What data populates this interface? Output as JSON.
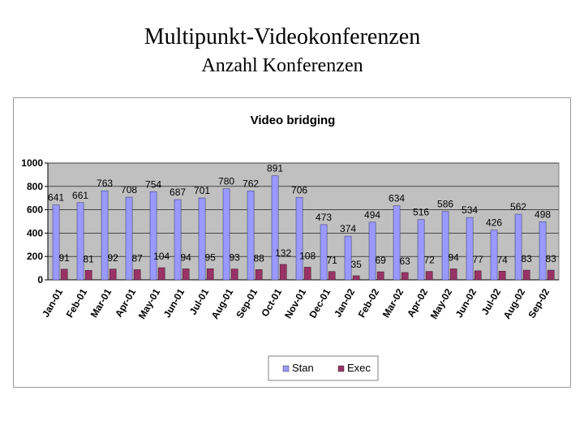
{
  "slide": {
    "title": "Multipunkt-Videokonferenzen",
    "subtitle": "Anzahl Konferenzen"
  },
  "colors": {
    "plot_bg": "#c0c0c0",
    "stan": "#9999ff",
    "exec": "#993366"
  },
  "chart_data": {
    "type": "bar",
    "title": "Video bridging",
    "xlabel": "",
    "ylabel": "",
    "ylim": [
      0,
      1000
    ],
    "yticks": [
      0,
      200,
      400,
      600,
      800,
      1000
    ],
    "grid": true,
    "legend_position": "bottom",
    "categories": [
      "Jan-01",
      "Feb-01",
      "Mar-01",
      "Apr-01",
      "May-01",
      "Jun-01",
      "Jul-01",
      "Aug-01",
      "Sep-01",
      "Oct-01",
      "Nov-01",
      "Dec-01",
      "Jan-02",
      "Feb-02",
      "Mar-02",
      "Apr-02",
      "May-02",
      "Jun-02",
      "Jul-02",
      "Aug-02",
      "Sep-02"
    ],
    "series": [
      {
        "name": "Stan",
        "values": [
          641,
          661,
          763,
          708,
          754,
          687,
          701,
          780,
          762,
          891,
          706,
          473,
          374,
          494,
          634,
          516,
          586,
          534,
          426,
          562,
          498
        ]
      },
      {
        "name": "Exec",
        "values": [
          91,
          81,
          92,
          87,
          104,
          94,
          95,
          93,
          88,
          132,
          108,
          71,
          35,
          69,
          63,
          72,
          94,
          77,
          74,
          83,
          83
        ]
      }
    ]
  }
}
